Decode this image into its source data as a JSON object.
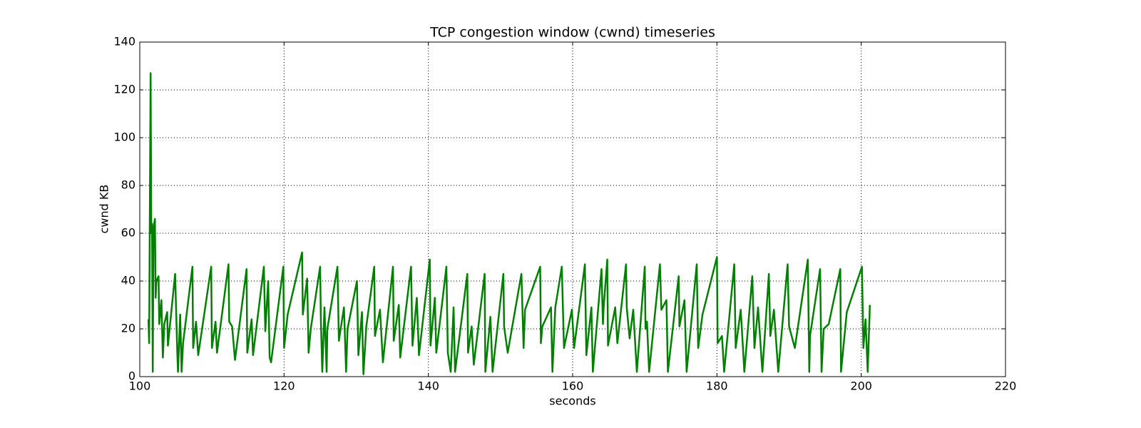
{
  "chart_data": {
    "type": "line",
    "title": "TCP congestion window (cwnd) timeseries",
    "xlabel": "seconds",
    "ylabel": "cwnd KB",
    "x": [
      101.2,
      101.3,
      101.5,
      101.6,
      101.7,
      101.8,
      101.9,
      102.1,
      102.2,
      102.3,
      102.6,
      102.7,
      103.0,
      103.2,
      103.4,
      103.8,
      103.9,
      104.9,
      105.2,
      105.3,
      105.6,
      105.8,
      106.0,
      107.3,
      107.4,
      107.8,
      108.1,
      109.9,
      110.0,
      110.5,
      110.7,
      112.3,
      112.4,
      112.8,
      113.2,
      114.8,
      114.9,
      115.5,
      115.7,
      117.2,
      117.4,
      117.8,
      118.0,
      118.2,
      119.9,
      120.0,
      120.5,
      122.5,
      122.6,
      123.2,
      123.4,
      123.7,
      125.0,
      125.1,
      125.3,
      125.6,
      125.9,
      126.0,
      127.4,
      127.6,
      128.3,
      128.6,
      128.8,
      130.1,
      130.3,
      130.8,
      131.0,
      131.4,
      132.5,
      132.6,
      133.3,
      133.7,
      135.1,
      135.2,
      135.9,
      136.1,
      137.6,
      137.8,
      138.4,
      138.7,
      140.2,
      140.3,
      140.9,
      141.1,
      142.5,
      142.7,
      143.1,
      143.5,
      143.7,
      145.4,
      145.5,
      146.0,
      146.3,
      147.8,
      147.9,
      148.6,
      148.9,
      150.4,
      150.5,
      151.0,
      152.9,
      153.2,
      153.4,
      155.5,
      155.6,
      155.8,
      157.0,
      157.2,
      157.6,
      158.5,
      158.8,
      159.9,
      160.2,
      161.7,
      161.9,
      162.6,
      162.8,
      164.0,
      164.2,
      164.3,
      164.8,
      164.9,
      165.9,
      166.2,
      167.4,
      167.5,
      167.9,
      168.4,
      168.9,
      170.0,
      170.1,
      170.3,
      170.6,
      172.1,
      172.3,
      173.0,
      173.2,
      174.7,
      174.8,
      175.5,
      175.8,
      177.2,
      177.4,
      178.0,
      180.0,
      180.1,
      180.7,
      181.0,
      182.4,
      182.6,
      183.3,
      183.8,
      184.9,
      185.2,
      185.7,
      186.3,
      187.2,
      187.4,
      187.9,
      188.5,
      189.8,
      190.0,
      190.8,
      192.6,
      192.8,
      192.9,
      194.3,
      194.5,
      194.8,
      195.5,
      197.1,
      197.2,
      198.0,
      200.1,
      200.3,
      200.6,
      200.9,
      201.2
    ],
    "values": [
      24,
      14,
      127,
      60,
      64,
      2,
      62,
      66,
      33,
      40,
      42,
      22,
      32,
      8,
      22,
      27,
      13,
      43,
      10,
      2,
      26,
      2,
      14,
      46,
      12,
      23,
      9,
      46,
      12,
      23,
      10,
      47,
      23,
      21,
      7,
      45,
      10,
      24,
      9,
      46,
      19,
      40,
      8,
      6,
      46,
      12,
      26,
      52,
      26,
      41,
      10,
      20,
      46,
      24,
      2,
      29,
      2,
      20,
      46,
      15,
      29,
      2,
      20,
      40,
      9,
      27,
      1,
      21,
      46,
      17,
      28,
      6,
      46,
      15,
      30,
      8,
      46,
      13,
      33,
      9,
      49,
      13,
      33,
      10,
      46,
      10,
      2,
      29,
      2,
      43,
      10,
      21,
      5,
      43,
      2,
      25,
      2,
      43,
      21,
      10,
      43,
      12,
      28,
      46,
      14,
      21,
      29,
      2,
      29,
      46,
      12,
      28,
      12,
      47,
      9,
      29,
      2,
      45,
      22,
      29,
      49,
      13,
      29,
      14,
      47,
      29,
      16,
      28,
      2,
      46,
      20,
      23,
      2,
      47,
      28,
      32,
      2,
      42,
      21,
      32,
      2,
      47,
      12,
      26,
      50,
      14,
      17,
      2,
      47,
      12,
      28,
      2,
      42,
      12,
      29,
      2,
      43,
      17,
      28,
      2,
      47,
      21,
      12,
      49,
      2,
      17,
      45,
      2,
      20,
      22,
      45,
      2,
      27,
      46,
      12,
      24,
      2,
      30
    ],
    "color": "#008000",
    "xlim": [
      100,
      220
    ],
    "xticks": [
      100,
      120,
      140,
      160,
      180,
      200,
      220
    ],
    "ylim": [
      0,
      140
    ],
    "yticks": [
      0,
      20,
      40,
      60,
      80,
      100,
      120,
      140
    ],
    "grid": true
  }
}
